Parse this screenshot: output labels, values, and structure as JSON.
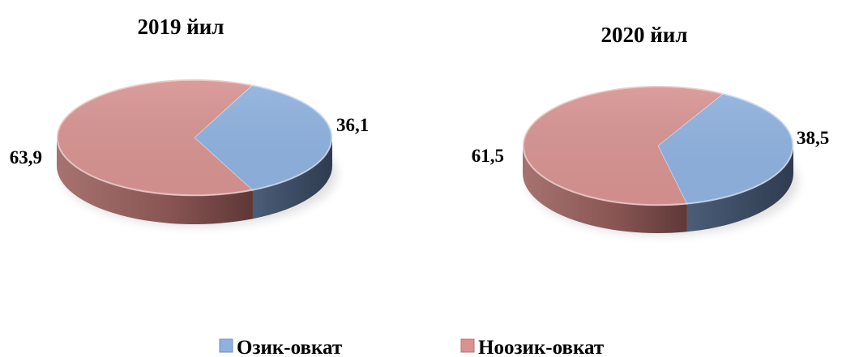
{
  "chart_data": [
    {
      "type": "pie",
      "title": "2019 йил",
      "categories": [
        "Озик-овкат",
        "Ноозик-овкат"
      ],
      "values": [
        36.1,
        63.9
      ],
      "value_labels": [
        "36,1",
        "63,9"
      ]
    },
    {
      "type": "pie",
      "title": "2020 йил",
      "categories": [
        "Озик-овкат",
        "Ноозик-овкат"
      ],
      "values": [
        38.5,
        61.5
      ],
      "value_labels": [
        "38,5",
        "61,5"
      ]
    }
  ],
  "legend": {
    "placement": "bottom",
    "items": [
      {
        "label": "Озик-овкат",
        "color": "#8eb1de"
      },
      {
        "label": "Ноозик-овкат",
        "color": "#d69391"
      }
    ]
  },
  "colors": {
    "food_top": "#8eb1de",
    "food_side": "#3f4e66",
    "nonfood_top": "#d69391",
    "nonfood_side": "#9b6563"
  }
}
